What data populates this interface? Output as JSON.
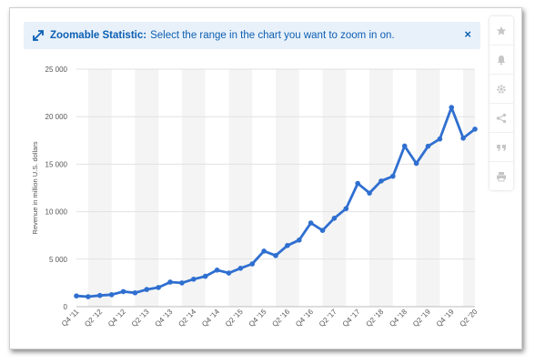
{
  "banner": {
    "title": "Zoomable Statistic:",
    "message": "Select the range in the chart you want to zoom in on.",
    "close": "×"
  },
  "toolbar": {
    "icons": [
      "star-icon",
      "bell-icon",
      "gear-icon",
      "share-icon",
      "quote-icon",
      "print-icon"
    ]
  },
  "colors": {
    "line": "#2f6fd0",
    "banner_bg": "#e8f1fa",
    "banner_text": "#0d5fb3",
    "band": "#f4f4f4",
    "grid": "#e2e2e2"
  },
  "chart_data": {
    "type": "line",
    "ylabel": "Revenue in million U.S. dollars",
    "ylim": [
      0,
      25000
    ],
    "yticks": [
      0,
      5000,
      10000,
      15000,
      20000,
      25000
    ],
    "ytick_labels": [
      "0",
      "5 000",
      "10 000",
      "15 000",
      "20 000",
      "25 000"
    ],
    "grid": true,
    "x": [
      "Q4 '11",
      "Q1 '12",
      "Q2 '12",
      "Q3 '12",
      "Q4 '12",
      "Q1 '13",
      "Q2 '13",
      "Q3 '13",
      "Q4 '13",
      "Q1 '14",
      "Q2 '14",
      "Q3 '14",
      "Q4 '14",
      "Q1 '15",
      "Q2 '15",
      "Q3 '15",
      "Q4 '15",
      "Q1 '16",
      "Q2 '16",
      "Q3 '16",
      "Q4 '16",
      "Q1 '17",
      "Q2 '17",
      "Q3 '17",
      "Q4 '17",
      "Q1 '18",
      "Q2 '18",
      "Q3 '18",
      "Q4 '18",
      "Q1 '19",
      "Q2 '19",
      "Q3 '19",
      "Q4 '19",
      "Q1 '20",
      "Q2 '20"
    ],
    "x_tick_labels": [
      "Q4 '11",
      "Q2 '12",
      "Q4 '12",
      "Q2 '13",
      "Q4 '13",
      "Q2 '14",
      "Q4 '14",
      "Q2 '15",
      "Q4 '15",
      "Q2 '16",
      "Q4 '16",
      "Q2 '17",
      "Q4 '17",
      "Q2 '18",
      "Q4 '18",
      "Q2 '19",
      "Q4 '19",
      "Q2 '20"
    ],
    "series": [
      {
        "values": [
          1130,
          1050,
          1180,
          1260,
          1590,
          1460,
          1810,
          2020,
          2590,
          2500,
          2890,
          3200,
          3850,
          3540,
          4040,
          4500,
          5850,
          5380,
          6440,
          7010,
          8810,
          8030,
          9310,
          10320,
          12970,
          11960,
          13230,
          13730,
          16910,
          15080,
          16890,
          17650,
          20970,
          17740,
          18690
        ]
      }
    ]
  }
}
